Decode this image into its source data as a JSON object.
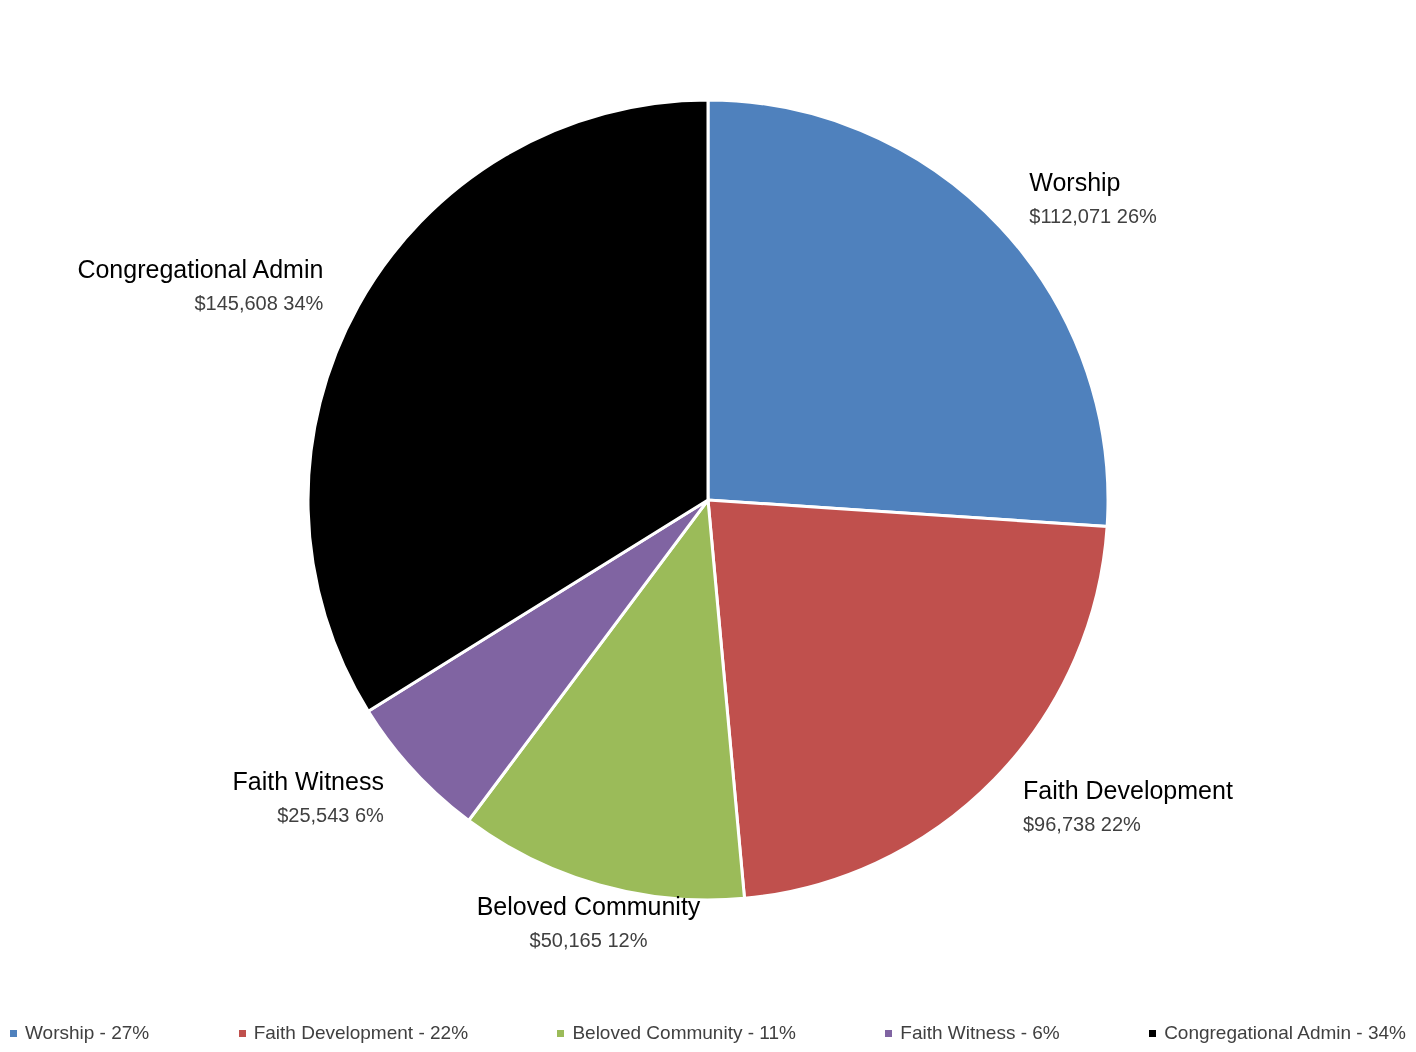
{
  "chart_data": {
    "type": "pie",
    "categories": [
      "Worship",
      "Faith Development",
      "Beloved Community",
      "Faith Witness",
      "Congregational Admin"
    ],
    "values": [
      112071,
      96738,
      50165,
      25543,
      145608
    ],
    "colors": [
      "#4f81bd",
      "#c0504d",
      "#9bbb59",
      "#8064a2",
      "#000000"
    ],
    "value_labels": [
      "$112,071   26%",
      "$96,738   22%",
      "$50,165   12%",
      "$25,543   6%",
      "$145,608   34%"
    ],
    "annotations": [
      "Worship - 27%",
      "Faith Development - 22%",
      "Beloved Community - 11%",
      "Faith Witness - 6%",
      "Congregational Admin - 34%"
    ]
  }
}
